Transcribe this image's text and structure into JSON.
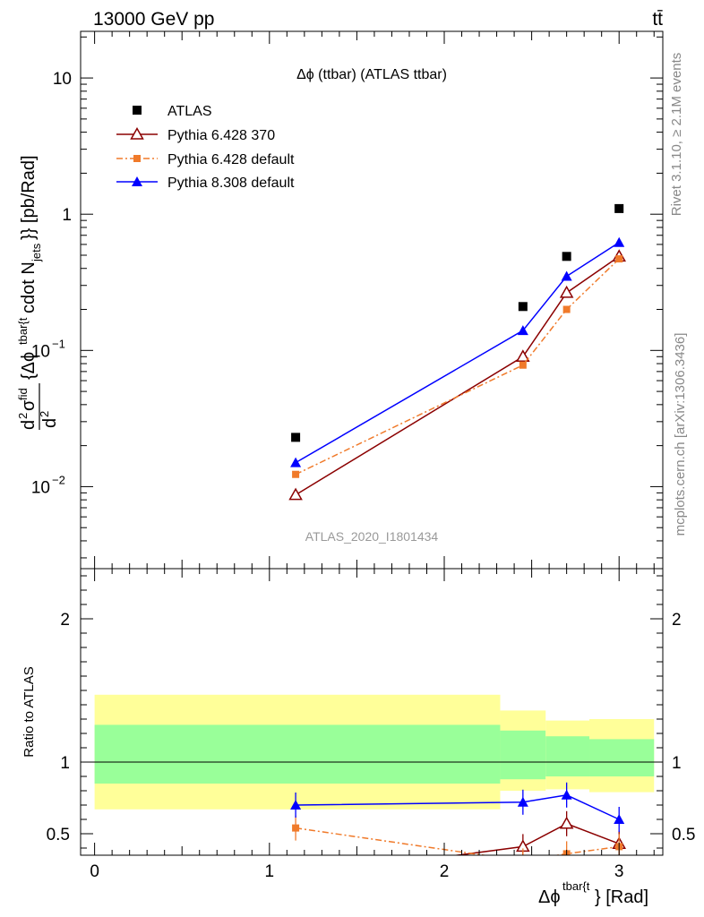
{
  "header": {
    "left": "13000 GeV pp",
    "right": "tt̄"
  },
  "side_labels": {
    "rivet": "Rivet 3.1.10, ≥ 2.1M events",
    "mcplots": "mcplots.cern.ch [arXiv:1306.3436]"
  },
  "chart_data": [
    {
      "type": "line",
      "title": "Δϕ (ttbar) (ATLAS ttbar)",
      "watermark": "ATLAS_2020_I1801434",
      "ylabel": "d²σ^fid / d² {Δϕ^tbar{t}} cdot N_jets}} [pb/Rad]",
      "yscale": "log",
      "xlim": [
        -0.08,
        3.25
      ],
      "ylim": [
        0.0025,
        22
      ],
      "y_ticks": [
        {
          "value": 0.01,
          "label": "10",
          "exp": "−2"
        },
        {
          "value": 0.1,
          "label": "10",
          "exp": "−1"
        },
        {
          "value": 1,
          "label": "1",
          "exp": ""
        },
        {
          "value": 10,
          "label": "10",
          "exp": ""
        }
      ],
      "legend_position": "top-left",
      "series": [
        {
          "name": "ATLAS",
          "marker": "square",
          "color": "#000000",
          "x": [
            1.15,
            2.45,
            2.7,
            3.0
          ],
          "y": [
            0.023,
            0.21,
            0.49,
            1.1
          ]
        },
        {
          "name": "Pythia 6.428 370",
          "marker": "triangle-open",
          "color": "#8b0000",
          "dash": "solid",
          "x": [
            1.15,
            2.45,
            2.7,
            3.0
          ],
          "y": [
            0.0087,
            0.09,
            0.265,
            0.49
          ]
        },
        {
          "name": "Pythia 6.428 default",
          "marker": "square-small",
          "color": "#f07a2a",
          "dash": "dashdot",
          "x": [
            1.15,
            2.45,
            2.7,
            3.0
          ],
          "y": [
            0.0123,
            0.078,
            0.2,
            0.47
          ]
        },
        {
          "name": "Pythia 8.308 default",
          "marker": "triangle",
          "color": "#0000ff",
          "dash": "solid",
          "x": [
            1.15,
            2.45,
            2.7,
            3.0
          ],
          "y": [
            0.015,
            0.14,
            0.35,
            0.62
          ]
        }
      ]
    },
    {
      "type": "line",
      "ylabel": "Ratio to ATLAS",
      "xlabel": "Δϕ^tbar{t}} [Rad]",
      "xlim": [
        -0.08,
        3.25
      ],
      "ylim": [
        0.35,
        2.35
      ],
      "x_ticks": [
        0,
        1,
        2,
        3
      ],
      "y_ticks": [
        0.5,
        1,
        2
      ],
      "reference_line": 1,
      "bands": [
        {
          "x0": 0.0,
          "x1": 2.32,
          "yellow": [
            0.67,
            1.47
          ],
          "green": [
            0.85,
            1.26
          ]
        },
        {
          "x0": 2.32,
          "x1": 2.58,
          "yellow": [
            0.8,
            1.36
          ],
          "green": [
            0.88,
            1.22
          ]
        },
        {
          "x0": 2.58,
          "x1": 2.83,
          "yellow": [
            0.81,
            1.29
          ],
          "green": [
            0.9,
            1.18
          ]
        },
        {
          "x0": 2.83,
          "x1": 3.2,
          "yellow": [
            0.79,
            1.3
          ],
          "green": [
            0.9,
            1.16
          ]
        }
      ],
      "series": [
        {
          "name": "Pythia 6.428 370",
          "marker": "triangle-open",
          "color": "#8b0000",
          "dash": "solid",
          "x": [
            1.15,
            2.45,
            2.7,
            3.0
          ],
          "y": [
            0.2,
            0.41,
            0.57,
            0.43
          ]
        },
        {
          "name": "Pythia 6.428 default",
          "marker": "square-small",
          "color": "#f07a2a",
          "dash": "dashdot",
          "x": [
            1.15,
            2.45,
            2.7,
            3.0
          ],
          "y": [
            0.54,
            0.31,
            0.36,
            0.41
          ]
        },
        {
          "name": "Pythia 8.308 default",
          "marker": "triangle",
          "color": "#0000ff",
          "dash": "solid",
          "x": [
            1.15,
            2.45,
            2.7,
            3.0
          ],
          "y": [
            0.7,
            0.72,
            0.77,
            0.6
          ]
        }
      ]
    }
  ]
}
